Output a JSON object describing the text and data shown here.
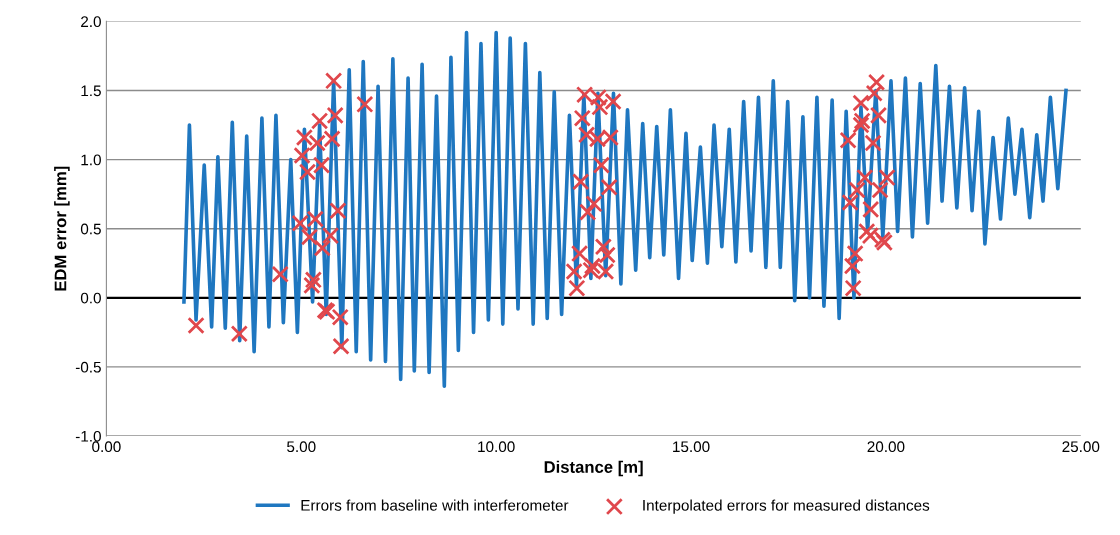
{
  "chart_data": {
    "type": "line",
    "xlabel": "Distance [m]",
    "ylabel": "EDM error [mm]",
    "xlim": [
      0,
      25
    ],
    "ylim": [
      -1,
      2
    ],
    "xticks": [
      {
        "value": 0,
        "label": "0.00"
      },
      {
        "value": 5,
        "label": "5.00"
      },
      {
        "value": 10,
        "label": "10.00"
      },
      {
        "value": 15,
        "label": "15.00"
      },
      {
        "value": 20,
        "label": "20.00"
      },
      {
        "value": 25,
        "label": "25.00"
      }
    ],
    "yticks": [
      {
        "value": -1,
        "label": "-1.0"
      },
      {
        "value": -0.5,
        "label": "-0.5"
      },
      {
        "value": 0,
        "label": "0.0"
      },
      {
        "value": 0.5,
        "label": "0.5"
      },
      {
        "value": 1,
        "label": "1.0"
      },
      {
        "value": 1.5,
        "label": "1.5"
      },
      {
        "value": 2,
        "label": "2.0"
      }
    ],
    "grid": "y",
    "legend": "bottom",
    "series": [
      {
        "name": "Errors from baseline with interferometer",
        "color": "#1f77c0",
        "marker": "none",
        "line_style": "solid",
        "x": [
          1.99,
          2.13,
          2.3,
          2.51,
          2.7,
          2.86,
          3.05,
          3.23,
          3.42,
          3.6,
          3.79,
          3.99,
          4.17,
          4.35,
          4.54,
          4.73,
          4.9,
          5.08,
          5.29,
          5.47,
          5.64,
          5.83,
          6.04,
          6.23,
          6.41,
          6.59,
          6.78,
          6.97,
          7.16,
          7.35,
          7.55,
          7.74,
          7.9,
          8.1,
          8.28,
          8.47,
          8.67,
          8.84,
          9.03,
          9.24,
          9.42,
          9.61,
          9.8,
          10.0,
          10.17,
          10.36,
          10.56,
          10.75,
          10.95,
          11.12,
          11.31,
          11.49,
          11.68,
          11.88,
          12.06,
          12.25,
          12.43,
          12.61,
          12.81,
          13.01,
          13.2,
          13.37,
          13.58,
          13.76,
          13.94,
          14.12,
          14.3,
          14.47,
          14.68,
          14.87,
          15.03,
          15.24,
          15.42,
          15.59,
          15.79,
          15.98,
          16.15,
          16.35,
          16.54,
          16.73,
          16.92,
          17.11,
          17.29,
          17.48,
          17.66,
          17.87,
          18.04,
          18.23,
          18.41,
          18.62,
          18.8,
          18.98,
          19.18,
          19.36,
          19.53,
          19.74,
          19.92,
          20.13,
          20.3,
          20.5,
          20.68,
          20.88,
          21.07,
          21.28,
          21.44,
          21.63,
          21.82,
          22.02,
          22.21,
          22.38,
          22.54,
          22.75,
          22.94,
          23.14,
          23.31,
          23.49,
          23.69,
          23.87,
          24.03,
          24.22,
          24.41,
          24.62
        ],
        "values": [
          -0.03,
          1.25,
          -0.16,
          0.96,
          -0.21,
          1.02,
          -0.22,
          1.27,
          -0.31,
          1.17,
          -0.39,
          1.3,
          -0.21,
          1.32,
          -0.18,
          1.0,
          -0.25,
          1.22,
          -0.03,
          1.25,
          -0.12,
          1.57,
          -0.36,
          1.65,
          -0.39,
          1.71,
          -0.45,
          1.53,
          -0.46,
          1.73,
          -0.59,
          1.59,
          -0.53,
          1.69,
          -0.54,
          1.46,
          -0.64,
          1.74,
          -0.38,
          1.92,
          -0.25,
          1.84,
          -0.16,
          1.92,
          -0.19,
          1.88,
          -0.08,
          1.84,
          -0.19,
          1.63,
          -0.15,
          1.49,
          -0.12,
          1.32,
          0.09,
          1.47,
          0.14,
          1.48,
          0.16,
          1.48,
          0.1,
          1.36,
          0.2,
          1.26,
          0.29,
          1.24,
          0.31,
          1.36,
          0.14,
          1.19,
          0.27,
          1.09,
          0.25,
          1.25,
          0.37,
          1.22,
          0.26,
          1.42,
          0.34,
          1.45,
          0.22,
          1.57,
          0.22,
          1.42,
          -0.02,
          1.31,
          0.0,
          1.45,
          -0.06,
          1.43,
          -0.15,
          1.35,
          0.0,
          1.38,
          0.48,
          1.5,
          0.44,
          1.57,
          0.48,
          1.59,
          0.44,
          1.55,
          0.54,
          1.68,
          0.7,
          1.53,
          0.65,
          1.52,
          0.63,
          1.35,
          0.39,
          1.16,
          0.57,
          1.3,
          0.75,
          1.22,
          0.58,
          1.18,
          0.7,
          1.45,
          0.79,
          1.5
        ]
      },
      {
        "name": "Interpolated errors for measured distances",
        "type": "scatter",
        "color": "#e0474c",
        "marker": "cross",
        "x": [
          2.3,
          3.41,
          4.46,
          4.97,
          5.02,
          5.08,
          5.16,
          5.21,
          5.27,
          5.31,
          5.36,
          5.41,
          5.47,
          5.52,
          5.54,
          5.61,
          5.66,
          5.75,
          5.79,
          5.83,
          5.87,
          5.94,
          6.0,
          6.02,
          6.63,
          12.0,
          12.07,
          12.14,
          12.17,
          12.21,
          12.27,
          12.32,
          12.35,
          12.43,
          12.47,
          12.51,
          12.6,
          12.62,
          12.66,
          12.7,
          12.75,
          12.81,
          12.85,
          12.9,
          12.93,
          13.0,
          19.03,
          19.08,
          19.14,
          19.16,
          19.21,
          19.26,
          19.36,
          19.36,
          19.39,
          19.46,
          19.51,
          19.6,
          19.61,
          19.67,
          19.7,
          19.76,
          19.81,
          19.85,
          19.91,
          19.96,
          20.03
        ],
        "values": [
          -0.2,
          -0.26,
          0.17,
          0.54,
          1.03,
          1.16,
          0.91,
          0.44,
          0.09,
          0.13,
          0.57,
          1.12,
          1.28,
          0.96,
          0.36,
          -0.09,
          -0.1,
          0.45,
          1.15,
          1.57,
          1.32,
          0.63,
          -0.14,
          -0.35,
          1.4,
          0.19,
          0.07,
          0.32,
          0.84,
          1.3,
          1.47,
          1.18,
          0.62,
          0.2,
          0.23,
          0.68,
          1.15,
          1.45,
          1.38,
          0.96,
          0.37,
          0.19,
          0.31,
          0.8,
          1.16,
          1.42,
          1.14,
          0.69,
          0.23,
          0.07,
          0.32,
          0.78,
          1.25,
          1.41,
          1.28,
          0.87,
          0.48,
          0.45,
          0.64,
          1.12,
          1.48,
          1.56,
          1.32,
          0.78,
          0.42,
          0.4,
          0.87
        ]
      }
    ]
  }
}
